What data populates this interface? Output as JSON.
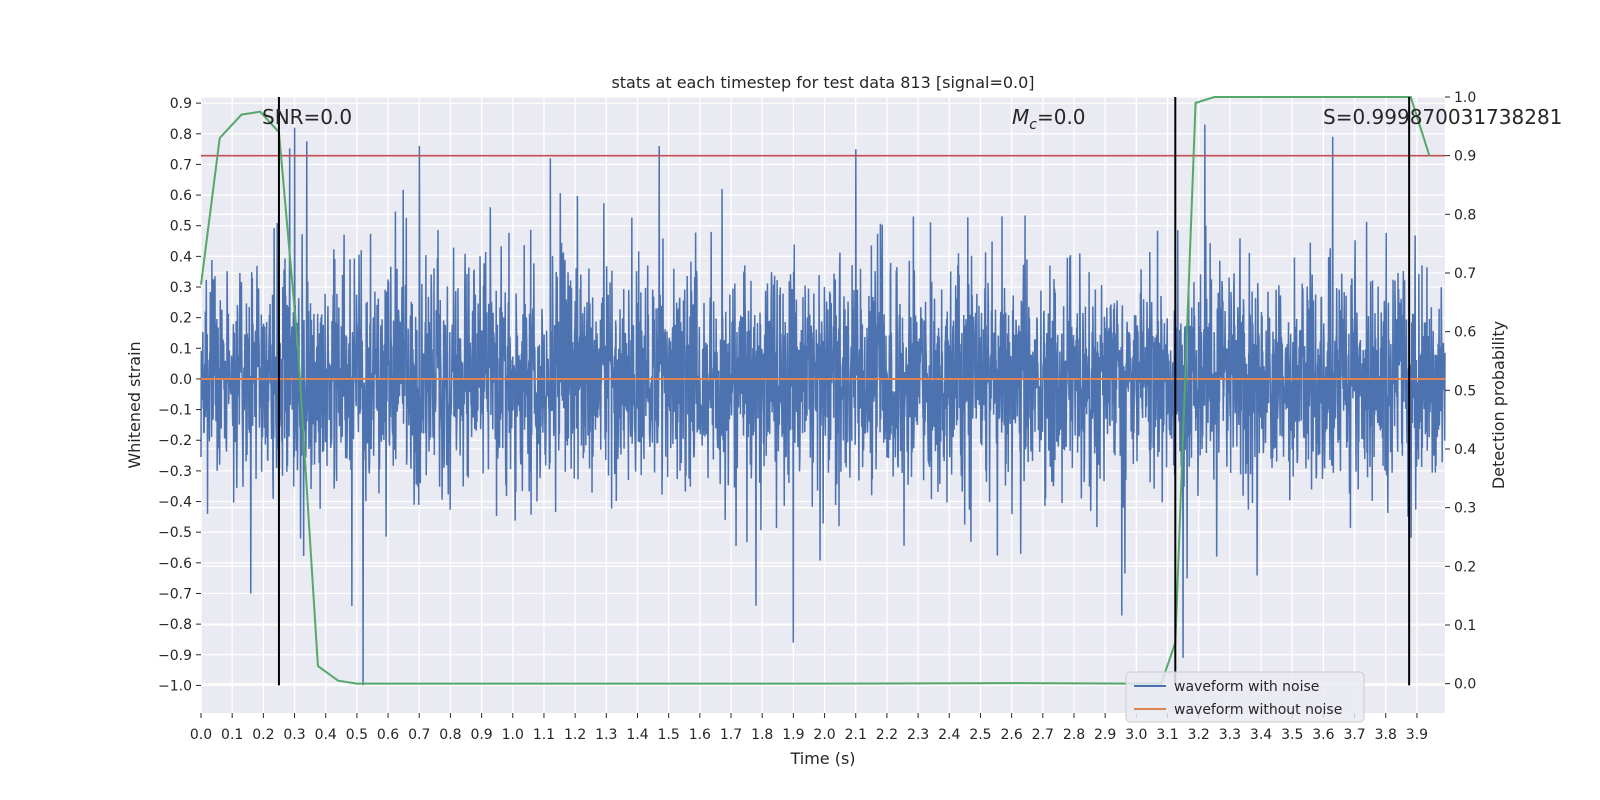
{
  "chart_data": {
    "type": "line",
    "title": "stats at each timestep for test data 813 [signal=0.0]",
    "xlabel": "Time (s)",
    "ylabel": "Whitened strain",
    "y2label": "Detection probability",
    "xlim": [
      0.0,
      3.99
    ],
    "ylim": [
      -1.09,
      0.92
    ],
    "y2lim": [
      -0.05,
      1.0
    ],
    "x_ticks": [
      "0.0",
      "0.1",
      "0.2",
      "0.3",
      "0.4",
      "0.5",
      "0.6",
      "0.7",
      "0.8",
      "0.9",
      "1.0",
      "1.1",
      "1.2",
      "1.3",
      "1.4",
      "1.5",
      "1.6",
      "1.7",
      "1.8",
      "1.9",
      "2.0",
      "2.1",
      "2.2",
      "2.3",
      "2.4",
      "2.5",
      "2.6",
      "2.7",
      "2.8",
      "2.9",
      "3.0",
      "3.1",
      "3.2",
      "3.3",
      "3.4",
      "3.5",
      "3.6",
      "3.7",
      "3.8",
      "3.9"
    ],
    "y_ticks": [
      "0.9",
      "0.8",
      "0.7",
      "0.6",
      "0.5",
      "0.4",
      "0.3",
      "0.2",
      "0.1",
      "0.0",
      "−0.1",
      "−0.2",
      "−0.3",
      "−0.4",
      "−0.5",
      "−0.6",
      "−0.7",
      "−0.8",
      "−0.9",
      "−1.0"
    ],
    "y2_ticks": [
      "1.0",
      "0.9",
      "0.8",
      "0.7",
      "0.6",
      "0.5",
      "0.4",
      "0.3",
      "0.2",
      "0.1",
      "0.0"
    ],
    "grid": true,
    "series": [
      {
        "name": "waveform with noise",
        "color": "#4c72b0",
        "axis": "left",
        "description": "dense noise trace, approx. range -1.0 to 0.83",
        "amplitude_std": 0.22,
        "min": -1.0,
        "max": 0.83,
        "spikes": [
          [
            0.3,
            0.82
          ],
          [
            0.7,
            0.76
          ],
          [
            1.12,
            0.72
          ],
          [
            1.47,
            0.76
          ],
          [
            2.1,
            0.75
          ],
          [
            3.22,
            0.83
          ],
          [
            3.63,
            0.79
          ],
          [
            0.52,
            -1.0
          ],
          [
            1.9,
            -0.86
          ],
          [
            3.15,
            -0.91
          ],
          [
            0.16,
            -0.7
          ],
          [
            1.78,
            -0.74
          ]
        ]
      },
      {
        "name": "waveform without noise",
        "color": "#dd8452",
        "axis": "left",
        "x": [
          0.0,
          3.99
        ],
        "y": [
          0.0,
          0.0
        ]
      },
      {
        "name": "detection probability",
        "color": "#55a868",
        "axis": "right",
        "x": [
          0.0,
          0.06,
          0.13,
          0.19,
          0.25,
          0.31,
          0.375,
          0.44,
          0.5,
          1.0,
          2.0,
          2.6,
          3.0,
          3.08,
          3.125,
          3.19,
          3.25,
          3.5,
          3.88,
          3.94
        ],
        "y": [
          0.68,
          0.93,
          0.97,
          0.975,
          0.94,
          0.58,
          0.03,
          0.005,
          0.0,
          0.0,
          0.0,
          0.001,
          0.0,
          0.0,
          0.07,
          0.99,
          1.0,
          1.0,
          1.0,
          0.9
        ]
      }
    ],
    "threshold": {
      "value": 0.9,
      "axis": "right",
      "color": "#c44e52"
    },
    "markers": [
      {
        "x": 0.25,
        "color": "#000000"
      },
      {
        "x": 3.125,
        "color": "#000000"
      },
      {
        "x": 3.875,
        "color": "#000000"
      }
    ],
    "annotations": {
      "snr": "SNR=0.0",
      "mc_symbol": "M",
      "mc_sub": "c",
      "mc_value": "=0.0",
      "s_value": "S=0.999870031738281"
    },
    "legend": {
      "placement": "lower-right",
      "entries": [
        "waveform with noise",
        "waveform without noise"
      ]
    }
  },
  "colors": {
    "plot_bg": "#eaeaf2",
    "grid": "#ffffff",
    "text": "#262626"
  }
}
